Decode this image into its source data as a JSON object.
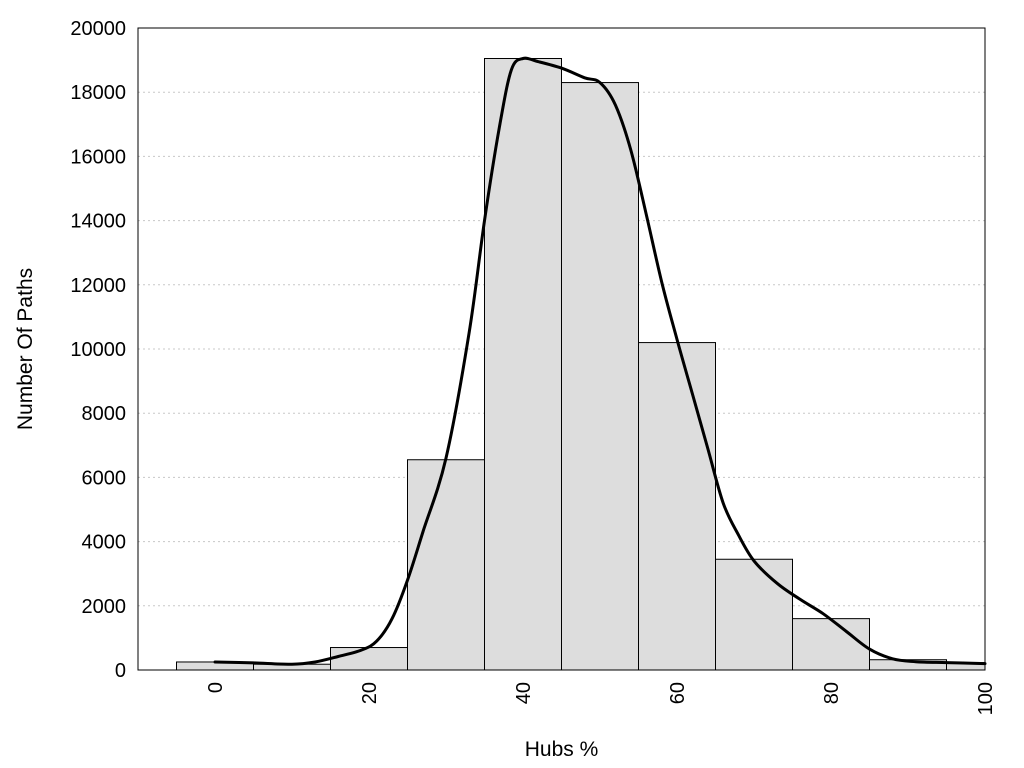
{
  "chart_data": {
    "type": "bar",
    "title": "",
    "xlabel": "Hubs %",
    "ylabel": "Number Of Paths",
    "xlim": [
      -10,
      100
    ],
    "ylim": [
      0,
      20000
    ],
    "bin_width": 10,
    "x_ticks": [
      "0",
      "20",
      "40",
      "60",
      "80",
      "100"
    ],
    "y_ticks": [
      "0",
      "2000",
      "4000",
      "6000",
      "8000",
      "10000",
      "12000",
      "14000",
      "16000",
      "18000",
      "20000"
    ],
    "grid": "horizontal-dotted",
    "bar_color": "#dddddd",
    "x": [
      0,
      10,
      20,
      30,
      40,
      50,
      60,
      70,
      80,
      90,
      100
    ],
    "values": [
      250,
      180,
      700,
      6550,
      19050,
      18300,
      10200,
      3450,
      1600,
      320,
      230
    ],
    "series": [
      {
        "type": "line",
        "x": [
          0,
          5,
          10,
          13,
          16,
          19,
          21,
          23,
          25,
          27,
          30,
          33,
          35,
          37,
          38.5,
          40,
          42,
          45,
          48,
          50,
          52,
          54,
          56,
          58,
          60,
          62,
          64,
          66,
          68,
          70,
          73,
          76,
          79,
          82,
          85,
          88,
          91,
          95,
          100
        ],
        "y": [
          250,
          220,
          180,
          250,
          420,
          620,
          900,
          1600,
          2800,
          4300,
          6600,
          10500,
          14000,
          17000,
          18700,
          19050,
          18950,
          18750,
          18450,
          18300,
          17600,
          16200,
          14200,
          12100,
          10300,
          8600,
          6900,
          5200,
          4200,
          3400,
          2700,
          2200,
          1750,
          1200,
          650,
          350,
          260,
          230,
          200
        ]
      }
    ]
  }
}
